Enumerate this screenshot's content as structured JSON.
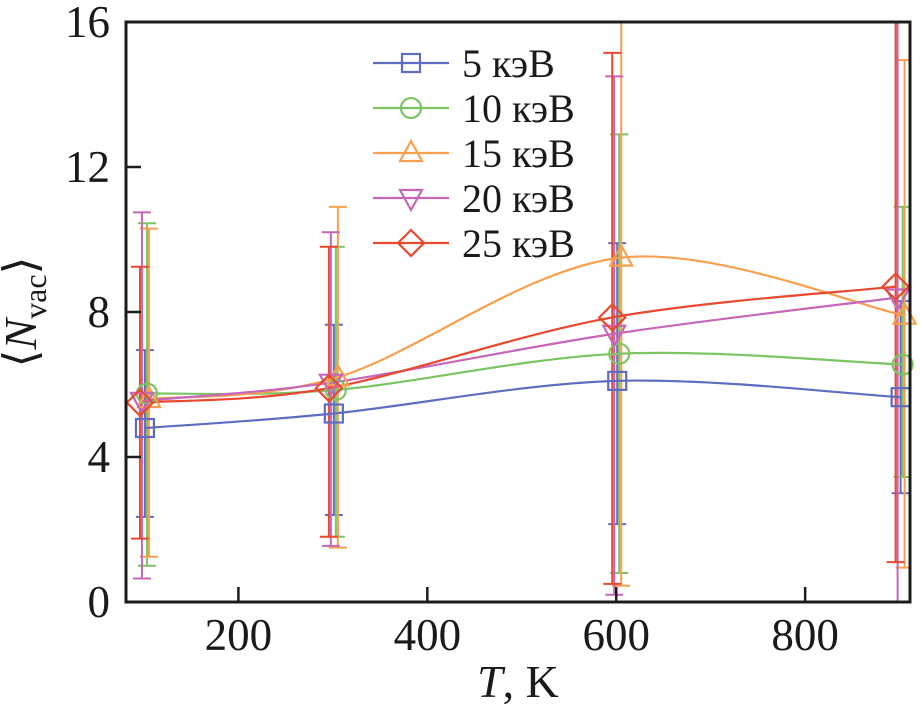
{
  "figure": {
    "background": "#ffffff",
    "frame_color": "#1c1c1c",
    "text_color": "#1a1a1a"
  },
  "chart_data": {
    "type": "line",
    "title": "",
    "xlabel": "T, K",
    "xlabel_var": "T",
    "xlabel_rest": ", K",
    "ylabel": "⟨Nvac⟩",
    "ylabel_open": "⟨",
    "ylabel_letter": "N",
    "ylabel_sub": "vac",
    "ylabel_close": "⟩",
    "x": [
      100,
      300,
      600,
      900
    ],
    "x_ticks": [
      200,
      400,
      600,
      800
    ],
    "y_ticks": [
      0,
      4,
      8,
      12,
      16
    ],
    "xlim": [
      81,
      911
    ],
    "ylim": [
      0,
      16
    ],
    "grid": false,
    "error_bars": true,
    "legend_position": "upper-center-left",
    "series": [
      {
        "name": "5 кэВ",
        "color": "#5e6dbf",
        "marker": "square",
        "x_offset": 1,
        "values": [
          4.8,
          5.2,
          6.1,
          5.65
        ],
        "bar_low": [
          2.35,
          2.4,
          2.15,
          3.0
        ],
        "bar_high": [
          6.95,
          7.65,
          9.9,
          8.3
        ]
      },
      {
        "name": "10 кэВ",
        "color": "#7cc464",
        "marker": "circle",
        "x_offset": 3,
        "values": [
          5.75,
          5.85,
          6.85,
          6.55
        ],
        "bar_low": [
          1.0,
          1.8,
          0.8,
          3.45
        ],
        "bar_high": [
          10.45,
          9.8,
          12.9,
          10.9
        ]
      },
      {
        "name": "15 кэВ",
        "color": "#f9a04e",
        "marker": "triangle-up",
        "x_offset": 5,
        "values": [
          5.6,
          6.2,
          9.5,
          7.9
        ],
        "bar_low": [
          1.25,
          1.5,
          0.45,
          0.95
        ],
        "bar_high": [
          10.3,
          10.9,
          16.6,
          14.95
        ]
      },
      {
        "name": "20 кэВ",
        "color": "#c667b9",
        "marker": "triangle-down",
        "x_offset": -2,
        "values": [
          5.55,
          6.05,
          7.4,
          8.4
        ],
        "bar_low": [
          0.65,
          1.55,
          0.2,
          -0.3
        ],
        "bar_high": [
          10.75,
          10.2,
          14.5,
          16.6
        ]
      },
      {
        "name": "25 кэВ",
        "color": "#e8492f",
        "marker": "diamond",
        "x_offset": -4,
        "values": [
          5.5,
          5.9,
          7.85,
          8.7
        ],
        "bar_low": [
          1.75,
          1.8,
          0.5,
          1.1
        ],
        "bar_high": [
          9.25,
          9.8,
          15.15,
          16.6
        ]
      }
    ]
  }
}
